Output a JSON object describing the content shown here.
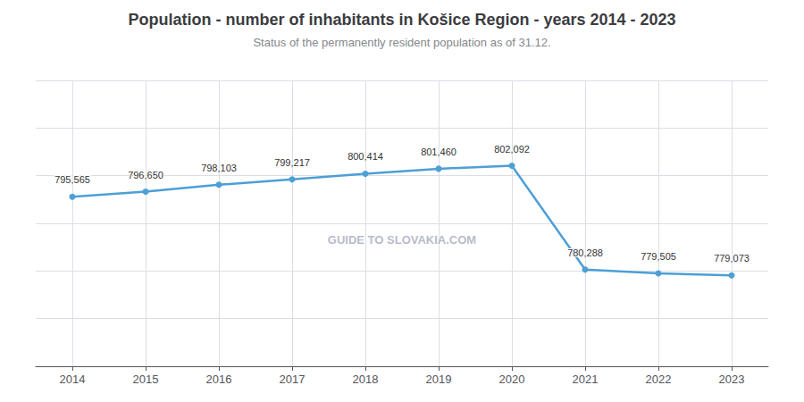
{
  "chart_data": {
    "type": "line",
    "title": "Population - number of inhabitants in Košice Region - years 2014 - 2023",
    "subtitle": "Status of the permanently resident population as of 31.12.",
    "x": [
      2014,
      2015,
      2016,
      2017,
      2018,
      2019,
      2020,
      2021,
      2022,
      2023
    ],
    "values": [
      795565,
      796650,
      798103,
      799217,
      800414,
      801460,
      802092,
      780288,
      779505,
      779073
    ],
    "value_labels": [
      "795,565",
      "796,650",
      "798,103",
      "799,217",
      "800,414",
      "801,460",
      "802,092",
      "780,288",
      "779,505",
      "779,073"
    ],
    "data_labels": true,
    "color": "#4d9fd6",
    "marker": "circle",
    "xlim": [
      2013.5,
      2023.5
    ],
    "xticks": [
      2014,
      2015,
      2016,
      2017,
      2018,
      2019,
      2020,
      2021,
      2022,
      2023
    ],
    "ylim": [
      760000,
      820000
    ],
    "yticks": [
      760000,
      770000,
      780000,
      790000,
      800000,
      810000,
      820000
    ],
    "tick_labels": "x",
    "grid": true,
    "annotations": [
      "GUIDE TO SLOVAKIA.COM"
    ]
  }
}
